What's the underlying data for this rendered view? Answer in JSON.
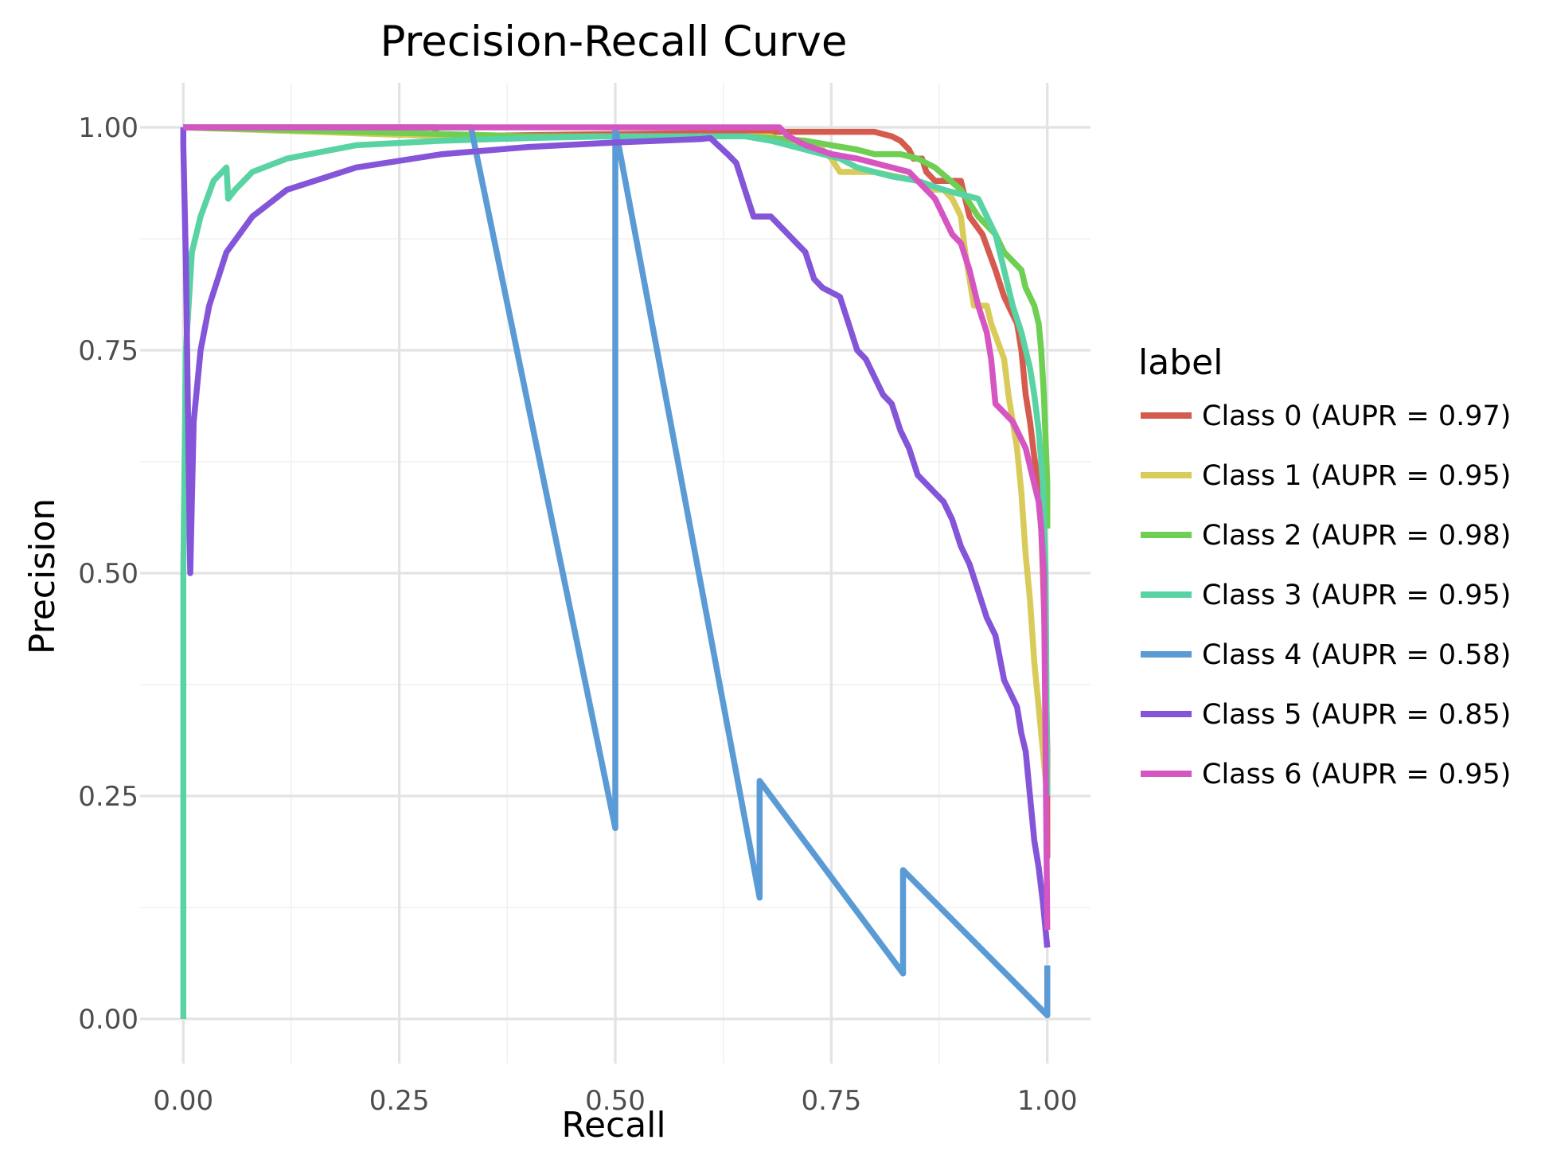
{
  "chart_data": {
    "type": "line",
    "title": "Precision-Recall Curve",
    "xlabel": "Recall",
    "ylabel": "Precision",
    "xlim": [
      -0.05,
      1.05
    ],
    "ylim": [
      -0.05,
      1.05
    ],
    "x_ticks": [
      0,
      0.25,
      0.5,
      0.75,
      1.0
    ],
    "x_tick_labels": [
      "0.00",
      "0.25",
      "0.50",
      "0.75",
      "1.00"
    ],
    "y_ticks": [
      0,
      0.25,
      0.5,
      0.75,
      1.0
    ],
    "y_tick_labels": [
      "0.00",
      "0.25",
      "0.50",
      "0.75",
      "1.00"
    ],
    "grid": true,
    "legend": {
      "title": "label",
      "position": "right"
    },
    "series": [
      {
        "name": "Class 0 (AUPR = 0.97)",
        "color": "#d55b4f",
        "x": [
          0,
          0.29,
          0.295,
          0.32,
          0.45,
          0.55,
          0.7,
          0.8,
          0.82,
          0.83,
          0.84,
          0.845,
          0.855,
          0.86,
          0.87,
          0.9,
          0.905,
          0.91,
          0.925,
          0.94,
          0.95,
          0.96,
          0.965,
          0.97,
          0.975,
          0.98,
          0.985,
          0.99,
          0.993,
          0.995,
          0.998,
          1.0,
          1.0
        ],
        "y": [
          1.0,
          1.0,
          0.99,
          0.99,
          0.992,
          0.993,
          0.995,
          0.995,
          0.99,
          0.985,
          0.975,
          0.965,
          0.965,
          0.95,
          0.94,
          0.94,
          0.92,
          0.9,
          0.88,
          0.84,
          0.81,
          0.79,
          0.78,
          0.75,
          0.7,
          0.67,
          0.63,
          0.6,
          0.55,
          0.5,
          0.4,
          0.3,
          0.18
        ]
      },
      {
        "name": "Class 1 (AUPR = 0.95)",
        "color": "#d9cb5a",
        "x": [
          0,
          0.3,
          0.4,
          0.55,
          0.63,
          0.68,
          0.7,
          0.74,
          0.75,
          0.76,
          0.8,
          0.85,
          0.86,
          0.88,
          0.89,
          0.9,
          0.905,
          0.91,
          0.915,
          0.93,
          0.935,
          0.95,
          0.955,
          0.96,
          0.965,
          0.97,
          0.975,
          0.98,
          0.985,
          0.99,
          0.995,
          1.0
        ],
        "y": [
          1.0,
          0.99,
          0.99,
          0.99,
          0.99,
          0.99,
          0.98,
          0.975,
          0.965,
          0.95,
          0.95,
          0.94,
          0.93,
          0.93,
          0.92,
          0.9,
          0.86,
          0.83,
          0.8,
          0.8,
          0.78,
          0.74,
          0.7,
          0.67,
          0.64,
          0.59,
          0.52,
          0.47,
          0.4,
          0.35,
          0.3,
          0.25
        ]
      },
      {
        "name": "Class 2 (AUPR = 0.98)",
        "color": "#6ecf52",
        "x": [
          0,
          0.4,
          0.55,
          0.65,
          0.72,
          0.75,
          0.78,
          0.8,
          0.83,
          0.85,
          0.87,
          0.9,
          0.92,
          0.94,
          0.95,
          0.96,
          0.97,
          0.975,
          0.98,
          0.985,
          0.99,
          0.993,
          0.996,
          0.998,
          1.0,
          1.0
        ],
        "y": [
          1.0,
          0.99,
          0.99,
          0.99,
          0.985,
          0.98,
          0.975,
          0.97,
          0.97,
          0.965,
          0.955,
          0.93,
          0.9,
          0.88,
          0.86,
          0.85,
          0.84,
          0.82,
          0.81,
          0.8,
          0.78,
          0.75,
          0.7,
          0.65,
          0.6,
          0.55
        ]
      },
      {
        "name": "Class 3 (AUPR = 0.95)",
        "color": "#59d3a3",
        "x": [
          0,
          0,
          0.003,
          0.01,
          0.02,
          0.035,
          0.05,
          0.052,
          0.06,
          0.08,
          0.12,
          0.2,
          0.3,
          0.4,
          0.5,
          0.6,
          0.65,
          0.68,
          0.7,
          0.72,
          0.74,
          0.76,
          0.78,
          0.8,
          0.82,
          0.85,
          0.88,
          0.9,
          0.92,
          0.94,
          0.95,
          0.96,
          0.97,
          0.98,
          0.985,
          0.99,
          0.995,
          0.998,
          1.0
        ],
        "y": [
          0.0,
          0.5,
          0.75,
          0.86,
          0.9,
          0.94,
          0.955,
          0.92,
          0.93,
          0.95,
          0.965,
          0.98,
          0.985,
          0.988,
          0.99,
          0.99,
          0.99,
          0.985,
          0.98,
          0.975,
          0.97,
          0.965,
          0.955,
          0.95,
          0.945,
          0.94,
          0.93,
          0.925,
          0.92,
          0.88,
          0.84,
          0.8,
          0.77,
          0.73,
          0.7,
          0.66,
          0.6,
          0.5,
          0.25
        ]
      },
      {
        "name": "Class 4 (AUPR = 0.58)",
        "color": "#5b9bd5",
        "x": [
          0,
          0.333,
          0.5,
          0.5,
          0.667,
          0.667,
          0.833,
          0.833,
          1.0,
          1.0
        ],
        "y": [
          1.0,
          1.0,
          0.214,
          1.0,
          0.136,
          0.267,
          0.051,
          0.167,
          0.004,
          0.06
        ]
      },
      {
        "name": "Class 5 (AUPR = 0.85)",
        "color": "#8455d8",
        "x": [
          0,
          0,
          0.003,
          0.008,
          0.012,
          0.015,
          0.02,
          0.03,
          0.05,
          0.08,
          0.12,
          0.2,
          0.3,
          0.4,
          0.5,
          0.6,
          0.61,
          0.63,
          0.64,
          0.65,
          0.66,
          0.68,
          0.7,
          0.71,
          0.72,
          0.73,
          0.74,
          0.76,
          0.77,
          0.78,
          0.79,
          0.8,
          0.81,
          0.82,
          0.83,
          0.84,
          0.85,
          0.86,
          0.87,
          0.88,
          0.89,
          0.9,
          0.91,
          0.92,
          0.93,
          0.94,
          0.95,
          0.96,
          0.965,
          0.97,
          0.975,
          0.98,
          0.985,
          0.99,
          0.995,
          1.0
        ],
        "y": [
          1.0,
          0.98,
          0.85,
          0.5,
          0.67,
          0.7,
          0.75,
          0.8,
          0.86,
          0.9,
          0.93,
          0.955,
          0.97,
          0.978,
          0.983,
          0.987,
          0.988,
          0.97,
          0.96,
          0.93,
          0.9,
          0.9,
          0.88,
          0.87,
          0.86,
          0.83,
          0.82,
          0.81,
          0.78,
          0.75,
          0.74,
          0.72,
          0.7,
          0.69,
          0.66,
          0.64,
          0.61,
          0.6,
          0.59,
          0.58,
          0.56,
          0.53,
          0.51,
          0.48,
          0.45,
          0.43,
          0.38,
          0.36,
          0.35,
          0.32,
          0.3,
          0.25,
          0.2,
          0.17,
          0.13,
          0.08
        ]
      },
      {
        "name": "Class 6 (AUPR = 0.95)",
        "color": "#d656c1",
        "x": [
          0,
          0.5,
          0.6,
          0.65,
          0.69,
          0.7,
          0.72,
          0.75,
          0.78,
          0.8,
          0.82,
          0.84,
          0.85,
          0.86,
          0.87,
          0.88,
          0.89,
          0.9,
          0.91,
          0.92,
          0.93,
          0.935,
          0.94,
          0.95,
          0.96,
          0.965,
          0.97,
          0.975,
          0.98,
          0.985,
          0.99,
          0.993,
          0.996,
          0.998,
          1.0
        ],
        "y": [
          1.0,
          1.0,
          1.0,
          1.0,
          1.0,
          0.99,
          0.98,
          0.97,
          0.965,
          0.96,
          0.955,
          0.95,
          0.94,
          0.93,
          0.92,
          0.9,
          0.88,
          0.87,
          0.84,
          0.8,
          0.77,
          0.74,
          0.69,
          0.68,
          0.67,
          0.66,
          0.65,
          0.64,
          0.62,
          0.6,
          0.58,
          0.55,
          0.5,
          0.3,
          0.1
        ]
      }
    ]
  }
}
